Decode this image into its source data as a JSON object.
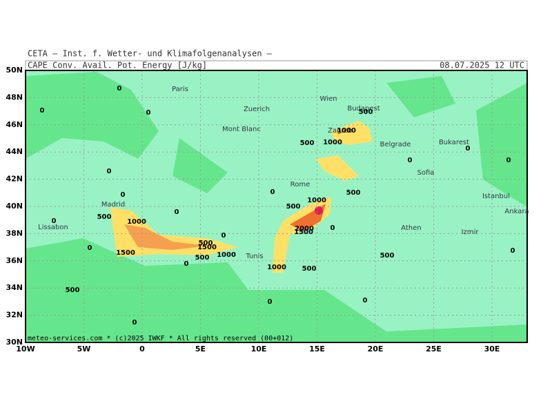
{
  "header": {
    "institute": "CETA — Inst. f. Wetter- und Klimafolgenanalysen —",
    "parameter": "CAPE_Conv._Avail._Pot._Energy [J/kg]",
    "valid_time": "08.07.2025 12 UTC"
  },
  "footer": "meteo-services.com * (c)2025 IWKF * All rights reserved (00+012)",
  "axes": {
    "lon_labels": [
      "10W",
      "5W",
      "0",
      "5E",
      "10E",
      "15E",
      "20E",
      "25E",
      "30E"
    ],
    "lat_labels": [
      "50N",
      "48N",
      "46N",
      "44N",
      "42N",
      "40N",
      "38N",
      "36N",
      "34N",
      "32N",
      "30N"
    ]
  },
  "cities": [
    "Paris",
    "Zuerich",
    "Wien",
    "Budapest",
    "Zagreb",
    "Mont Blanc",
    "Belgrade",
    "Bukarest",
    "Rome",
    "Sofia",
    "Madrid",
    "Lissabon",
    "Istanbul",
    "Ankara",
    "Athen",
    "Izmir",
    "Tunis"
  ],
  "contour_labels": [
    "0",
    "0",
    "0",
    "0",
    "0",
    "0",
    "0",
    "0",
    "0",
    "0",
    "0",
    "0",
    "0",
    "0",
    "0",
    "0",
    "0",
    "0",
    "0",
    "500",
    "500",
    "500",
    "500",
    "500",
    "500",
    "500",
    "500",
    "500",
    "500",
    "1000",
    "1000",
    "1000",
    "1000",
    "1000",
    "1000",
    "1500",
    "1500",
    "1500",
    "2000"
  ]
}
